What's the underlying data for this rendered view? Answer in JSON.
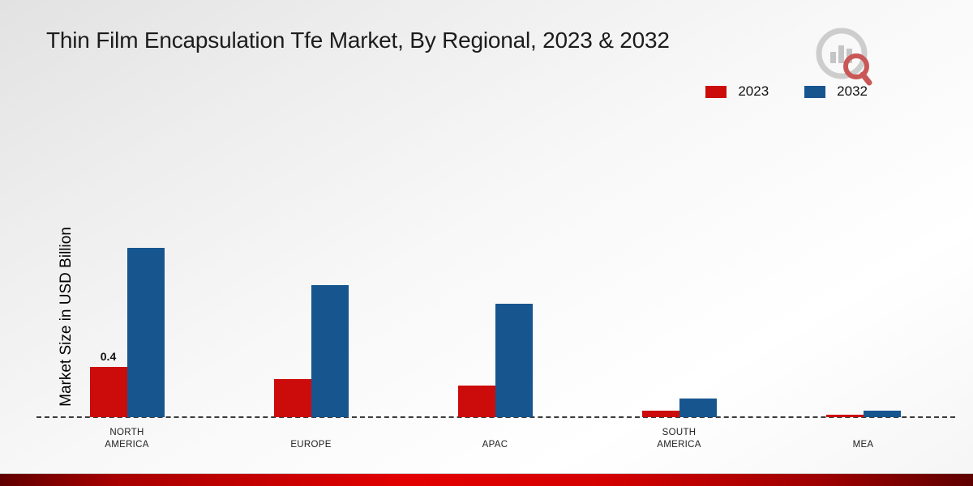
{
  "title": "Thin Film Encapsulation Tfe Market, By Regional, 2023 & 2032",
  "ylabel": "Market Size in USD Billion",
  "legend": [
    {
      "label": "2023",
      "color": "#cc0b0b"
    },
    {
      "label": "2032",
      "color": "#17558f"
    }
  ],
  "chart_data": {
    "type": "bar",
    "title": "Thin Film Encapsulation Tfe Market, By Regional, 2023 & 2032",
    "xlabel": "",
    "ylabel": "Market Size in USD Billion",
    "categories": [
      "NORTH AMERICA",
      "EUROPE",
      "APAC",
      "SOUTH AMERICA",
      "MEA"
    ],
    "series": [
      {
        "name": "2023",
        "color": "#cc0b0b",
        "values": [
          0.4,
          0.3,
          0.25,
          0.05,
          0.02
        ]
      },
      {
        "name": "2032",
        "color": "#17558f",
        "values": [
          1.35,
          1.05,
          0.9,
          0.15,
          0.05
        ]
      }
    ],
    "annotations": [
      {
        "series": "2023",
        "category": "NORTH AMERICA",
        "text": "0.4"
      }
    ],
    "ylim": [
      0,
      1.5
    ],
    "grid": false,
    "baseline_style": "dashed",
    "legend_position": "top-right"
  }
}
